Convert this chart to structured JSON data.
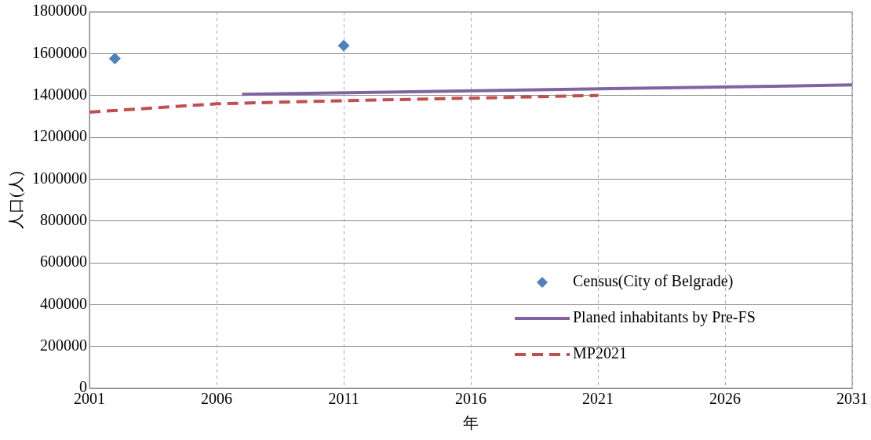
{
  "chart_data": {
    "type": "line",
    "xlabel": "年",
    "ylabel": "人口(人)",
    "xlim": [
      2001,
      2031
    ],
    "xticks": [
      2001,
      2006,
      2011,
      2016,
      2021,
      2026,
      2031
    ],
    "ylim": [
      0,
      1800000
    ],
    "yticks": [
      0,
      200000,
      400000,
      600000,
      800000,
      1000000,
      1200000,
      1400000,
      1600000,
      1800000
    ],
    "grid": true,
    "legend": "bottom right",
    "series": [
      {
        "name": "Census(City of Belgrade)",
        "type": "scatter",
        "marker": "diamond",
        "color": "#4f81bd",
        "x": [
          2002,
          2011
        ],
        "values": [
          1576000,
          1638000
        ]
      },
      {
        "name": "Planed inhabitants by Pre-FS",
        "type": "line",
        "line_style": "solid",
        "color": "#8064a2",
        "x": [
          2007,
          2031
        ],
        "values": [
          1405000,
          1450000
        ]
      },
      {
        "name": "MP2021",
        "type": "line",
        "line_style": "dashed",
        "color": "#c0504d",
        "x": [
          2001,
          2006,
          2011,
          2016,
          2021
        ],
        "values": [
          1320000,
          1360000,
          1375000,
          1387000,
          1400000
        ]
      }
    ]
  }
}
